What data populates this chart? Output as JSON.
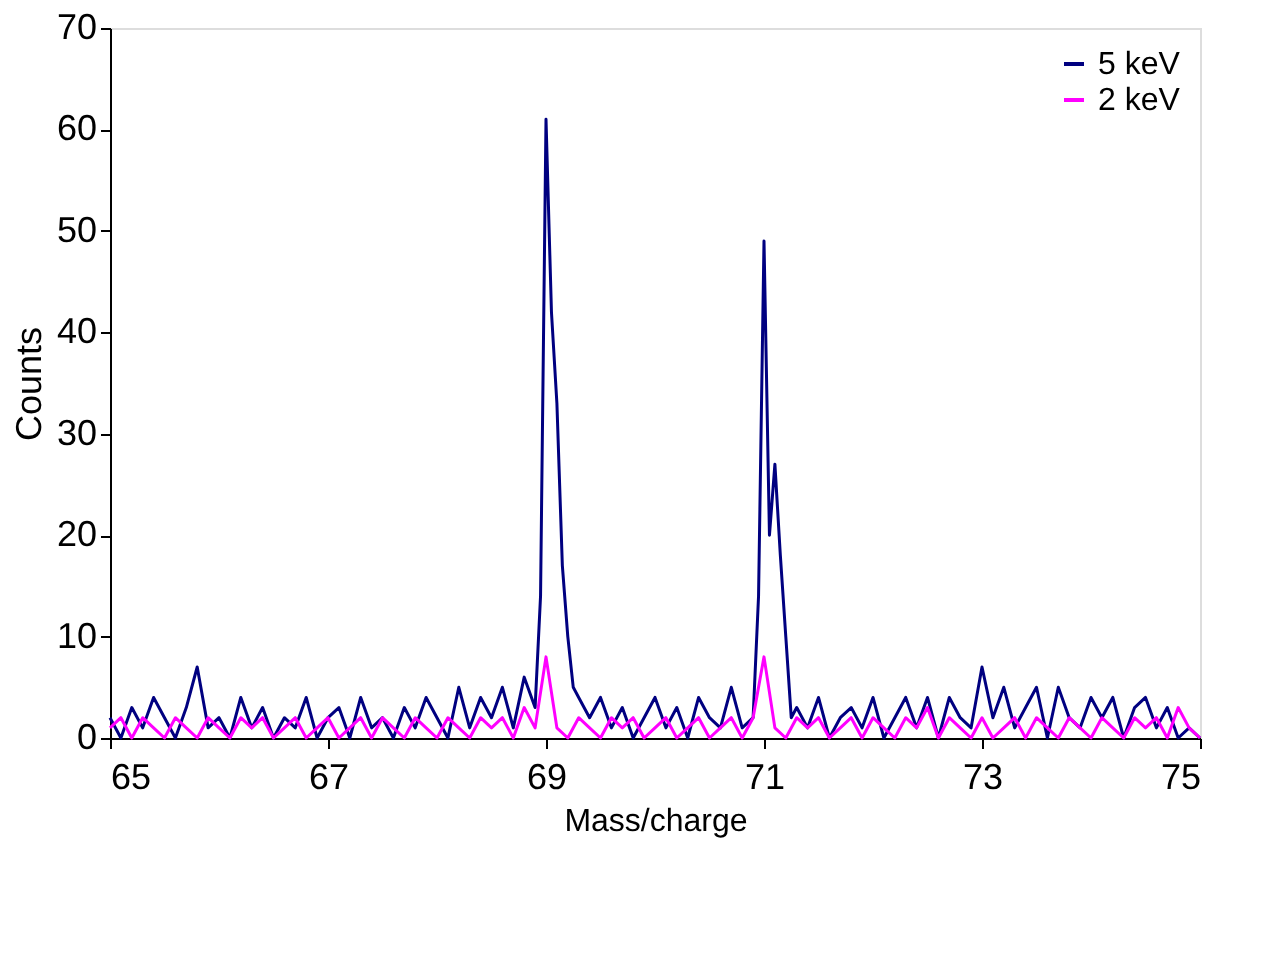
{
  "chart_data": {
    "type": "line",
    "xlabel": "Mass/charge",
    "ylabel": "Counts",
    "xlim": [
      65,
      75
    ],
    "xticks": [
      65,
      67,
      69,
      71,
      73,
      75
    ],
    "ylim": [
      0,
      70
    ],
    "yticks": [
      0,
      10,
      20,
      30,
      40,
      50,
      60,
      70
    ],
    "grid": false,
    "legend": "top right",
    "marker": "none",
    "line_style": "solid",
    "x": [
      65.0,
      65.1,
      65.2,
      65.3,
      65.4,
      65.5,
      65.6,
      65.7,
      65.8,
      65.9,
      66.0,
      66.1,
      66.2,
      66.3,
      66.4,
      66.5,
      66.6,
      66.7,
      66.8,
      66.9,
      67.0,
      67.1,
      67.2,
      67.3,
      67.4,
      67.5,
      67.6,
      67.7,
      67.8,
      67.9,
      68.0,
      68.1,
      68.2,
      68.3,
      68.4,
      68.5,
      68.6,
      68.7,
      68.8,
      68.9,
      69.0,
      69.1,
      69.2,
      69.3,
      69.4,
      69.5,
      69.6,
      69.7,
      69.8,
      69.9,
      70.0,
      70.1,
      70.2,
      70.3,
      70.4,
      70.5,
      70.6,
      70.7,
      70.8,
      70.9,
      71.0,
      71.1,
      71.2,
      71.3,
      71.4,
      71.5,
      71.6,
      71.7,
      71.8,
      71.9,
      72.0,
      72.1,
      72.2,
      72.3,
      72.4,
      72.5,
      72.6,
      72.7,
      72.8,
      72.9,
      73.0,
      73.1,
      73.2,
      73.3,
      73.4,
      73.5,
      73.6,
      73.7,
      73.8,
      73.9,
      74.0,
      74.1,
      74.2,
      74.3,
      74.4,
      74.5,
      74.6,
      74.7,
      74.8,
      74.9,
      75.0
    ],
    "series": [
      {
        "name": "5 keV",
        "color": "#000080",
        "x": [
          65.0,
          65.1,
          65.2,
          65.3,
          65.4,
          65.5,
          65.6,
          65.7,
          65.8,
          65.9,
          66.0,
          66.1,
          66.2,
          66.3,
          66.4,
          66.5,
          66.6,
          66.7,
          66.8,
          66.9,
          67.0,
          67.1,
          67.2,
          67.3,
          67.4,
          67.5,
          67.6,
          67.7,
          67.8,
          67.9,
          68.0,
          68.1,
          68.2,
          68.3,
          68.4,
          68.5,
          68.6,
          68.7,
          68.8,
          68.9,
          68.95,
          69.0,
          69.05,
          69.1,
          69.15,
          69.2,
          69.25,
          69.3,
          69.4,
          69.5,
          69.6,
          69.7,
          69.8,
          69.9,
          70.0,
          70.1,
          70.2,
          70.3,
          70.4,
          70.5,
          70.6,
          70.7,
          70.8,
          70.9,
          70.95,
          71.0,
          71.05,
          71.1,
          71.15,
          71.2,
          71.25,
          71.3,
          71.4,
          71.5,
          71.6,
          71.7,
          71.8,
          71.9,
          72.0,
          72.1,
          72.2,
          72.3,
          72.4,
          72.5,
          72.6,
          72.7,
          72.8,
          72.9,
          73.0,
          73.1,
          73.2,
          73.3,
          73.4,
          73.5,
          73.6,
          73.7,
          73.8,
          73.9,
          74.0,
          74.1,
          74.2,
          74.3,
          74.4,
          74.5,
          74.6,
          74.7,
          74.8,
          74.9,
          75.0
        ],
        "values": [
          2,
          0,
          3,
          1,
          4,
          2,
          0,
          3,
          7,
          1,
          2,
          0,
          4,
          1,
          3,
          0,
          2,
          1,
          4,
          0,
          2,
          3,
          0,
          4,
          1,
          2,
          0,
          3,
          1,
          4,
          2,
          0,
          5,
          1,
          4,
          2,
          5,
          1,
          6,
          3,
          14,
          61,
          42,
          33,
          17,
          10,
          5,
          4,
          2,
          4,
          1,
          3,
          0,
          2,
          4,
          1,
          3,
          0,
          4,
          2,
          1,
          5,
          1,
          2,
          14,
          49,
          20,
          27,
          18,
          10,
          2,
          3,
          1,
          4,
          0,
          2,
          3,
          1,
          4,
          0,
          2,
          4,
          1,
          4,
          0,
          4,
          2,
          1,
          7,
          2,
          5,
          1,
          3,
          5,
          0,
          5,
          2,
          1,
          4,
          2,
          4,
          0,
          3,
          4,
          1,
          3,
          0,
          1,
          0
        ]
      },
      {
        "name": "2 keV",
        "color": "#ff00ff",
        "values": [
          1,
          2,
          0,
          2,
          1,
          0,
          2,
          1,
          0,
          2,
          1,
          0,
          2,
          1,
          2,
          0,
          1,
          2,
          0,
          1,
          2,
          0,
          1,
          2,
          0,
          2,
          1,
          0,
          2,
          1,
          0,
          2,
          1,
          0,
          2,
          1,
          2,
          0,
          3,
          1,
          8,
          1,
          0,
          2,
          1,
          0,
          2,
          1,
          2,
          0,
          1,
          2,
          0,
          1,
          2,
          0,
          1,
          2,
          0,
          2,
          8,
          1,
          0,
          2,
          1,
          2,
          0,
          1,
          2,
          0,
          2,
          1,
          0,
          2,
          1,
          3,
          0,
          2,
          1,
          0,
          2,
          0,
          1,
          2,
          0,
          2,
          1,
          0,
          2,
          1,
          0,
          2,
          1,
          0,
          2,
          1,
          2,
          0,
          3,
          1,
          0
        ]
      }
    ]
  }
}
